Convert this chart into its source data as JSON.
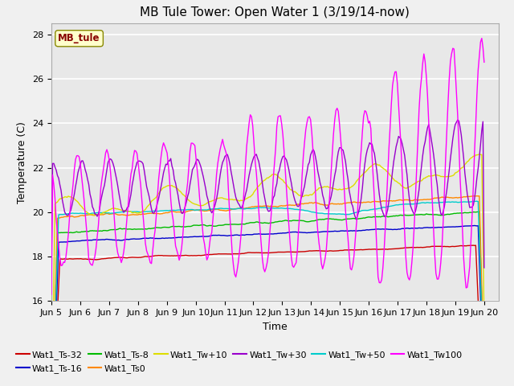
{
  "title": "MB Tule Tower: Open Water 1 (3/19/14-now)",
  "xlabel": "Time",
  "ylabel": "Temperature (C)",
  "ylim": [
    16,
    28.5
  ],
  "yticks": [
    16,
    18,
    20,
    22,
    24,
    26,
    28
  ],
  "x_tick_labels": [
    "Jun 5",
    "Jun 6",
    "Jun 7",
    "Jun 8",
    "Jun 9",
    "Jun 10",
    "Jun 11",
    "Jun 12",
    "Jun 13",
    "Jun 14",
    "Jun 15",
    "Jun 16",
    "Jun 17",
    "Jun 18",
    "Jun 19",
    "Jun 20"
  ],
  "series_colors": {
    "Wat1_Ts-32": "#cc0000",
    "Wat1_Ts-16": "#0000cc",
    "Wat1_Ts-8": "#00bb00",
    "Wat1_Ts0": "#ff8800",
    "Wat1_Tw+10": "#dddd00",
    "Wat1_Tw+30": "#9900cc",
    "Wat1_Tw+50": "#00cccc",
    "Wat1_Tw100": "#ff00ff"
  },
  "annotation_text": "MB_tule",
  "annotation_color": "#880000",
  "annotation_bg": "#ffffcc",
  "plot_bg": "#e8e8e8",
  "grid_color": "#ffffff",
  "title_fontsize": 11,
  "axis_fontsize": 9,
  "tick_fontsize": 8,
  "legend_fontsize": 8
}
